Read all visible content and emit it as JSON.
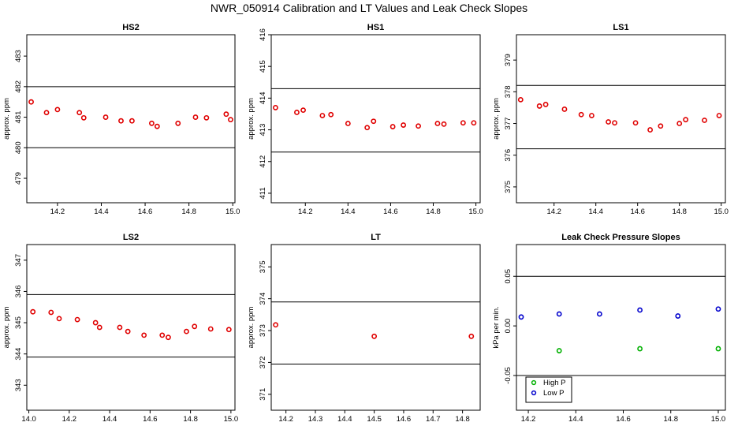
{
  "title": "NWR_050914  Calibration and LT Values and Leak Check Slopes",
  "chart_data": [
    {
      "type": "scatter",
      "title": "HS2",
      "ylabel": "approx. ppm",
      "xlim": [
        14.06,
        15.01
      ],
      "ylim": [
        478.2,
        483.7
      ],
      "xticks": [
        14.2,
        14.4,
        14.6,
        14.8,
        15.0
      ],
      "yticks": [
        479,
        480,
        481,
        482,
        483
      ],
      "hlines": [
        482.0,
        480.0
      ],
      "points_color": "#e00000",
      "x": [
        14.08,
        14.15,
        14.2,
        14.3,
        14.32,
        14.42,
        14.49,
        14.54,
        14.63,
        14.655,
        14.75,
        14.83,
        14.88,
        14.97,
        14.99
      ],
      "y": [
        481.5,
        481.15,
        481.25,
        481.15,
        480.98,
        481.0,
        480.88,
        480.88,
        480.8,
        480.7,
        480.8,
        481.0,
        480.98,
        481.1,
        480.92
      ]
    },
    {
      "type": "scatter",
      "title": "HS1",
      "ylabel": "approx. ppm",
      "xlim": [
        14.04,
        15.02
      ],
      "ylim": [
        410.7,
        416.0
      ],
      "xticks": [
        14.2,
        14.4,
        14.6,
        14.8,
        15.0
      ],
      "yticks": [
        411,
        412,
        413,
        414,
        415,
        416
      ],
      "hlines": [
        414.3,
        412.3
      ],
      "points_color": "#e00000",
      "x": [
        14.06,
        14.16,
        14.19,
        14.28,
        14.32,
        14.4,
        14.49,
        14.52,
        14.61,
        14.66,
        14.73,
        14.82,
        14.85,
        14.94,
        14.99
      ],
      "y": [
        413.7,
        413.55,
        413.62,
        413.45,
        413.48,
        413.2,
        413.07,
        413.27,
        413.1,
        413.15,
        413.12,
        413.2,
        413.18,
        413.22,
        413.22
      ]
    },
    {
      "type": "scatter",
      "title": "LS1",
      "ylabel": "approx. ppm",
      "xlim": [
        14.02,
        15.02
      ],
      "ylim": [
        374.5,
        379.8
      ],
      "xticks": [
        14.2,
        14.4,
        14.6,
        14.8,
        15.0
      ],
      "yticks": [
        375,
        376,
        377,
        378,
        379
      ],
      "hlines": [
        378.2,
        376.2
      ],
      "points_color": "#e00000",
      "x": [
        14.04,
        14.13,
        14.16,
        14.25,
        14.33,
        14.38,
        14.46,
        14.49,
        14.59,
        14.66,
        14.71,
        14.8,
        14.83,
        14.92,
        14.99
      ],
      "y": [
        377.75,
        377.55,
        377.6,
        377.45,
        377.28,
        377.25,
        377.05,
        377.02,
        377.02,
        376.8,
        376.92,
        377.0,
        377.12,
        377.1,
        377.25
      ]
    },
    {
      "type": "scatter",
      "title": "LS2",
      "ylabel": "approx. ppm",
      "xlim": [
        13.99,
        15.02
      ],
      "ylim": [
        342.2,
        347.5
      ],
      "xticks": [
        14.0,
        14.2,
        14.4,
        14.6,
        14.8,
        15.0
      ],
      "yticks": [
        343,
        344,
        345,
        346,
        347
      ],
      "hlines": [
        345.9,
        343.9
      ],
      "points_color": "#e00000",
      "x": [
        14.02,
        14.11,
        14.15,
        14.24,
        14.33,
        14.35,
        14.45,
        14.49,
        14.57,
        14.66,
        14.69,
        14.78,
        14.82,
        14.9,
        14.99
      ],
      "y": [
        345.35,
        345.33,
        345.13,
        345.1,
        345.0,
        344.85,
        344.85,
        344.72,
        344.6,
        344.6,
        344.53,
        344.72,
        344.88,
        344.8,
        344.78
      ]
    },
    {
      "type": "scatter",
      "title": "LT",
      "ylabel": "approx. ppm",
      "xlim": [
        14.15,
        14.86
      ],
      "ylim": [
        370.5,
        375.7
      ],
      "xticks": [
        14.2,
        14.3,
        14.4,
        14.5,
        14.6,
        14.7,
        14.8
      ],
      "yticks": [
        371,
        372,
        373,
        374,
        375
      ],
      "hlines": [
        373.9,
        371.95
      ],
      "points_color": "#e00000",
      "x": [
        14.165,
        14.5,
        14.83
      ],
      "y": [
        373.18,
        372.82,
        372.82
      ]
    },
    {
      "type": "scatter",
      "title": "Leak Check Pressure Slopes",
      "ylabel": "kPa per min.",
      "xlim": [
        14.15,
        15.03
      ],
      "ylim": [
        -0.085,
        0.082
      ],
      "xticks": [
        14.2,
        14.4,
        14.6,
        14.8,
        15.0
      ],
      "yticks": [
        -0.05,
        0.0,
        0.05
      ],
      "ytick_labels": [
        "-0.05",
        "0.00",
        "0.05"
      ],
      "hlines": [
        0.05,
        -0.05
      ],
      "legend": "bottom-left",
      "series": [
        {
          "name": "High P",
          "color": "#00b000",
          "x": [
            14.33,
            14.67,
            15.0
          ],
          "y": [
            -0.025,
            -0.023,
            -0.023
          ]
        },
        {
          "name": "Low P",
          "color": "#0000cc",
          "x": [
            14.17,
            14.33,
            14.5,
            14.67,
            14.83,
            15.0
          ],
          "y": [
            0.009,
            0.012,
            0.012,
            0.016,
            0.01,
            0.017
          ]
        }
      ]
    }
  ]
}
